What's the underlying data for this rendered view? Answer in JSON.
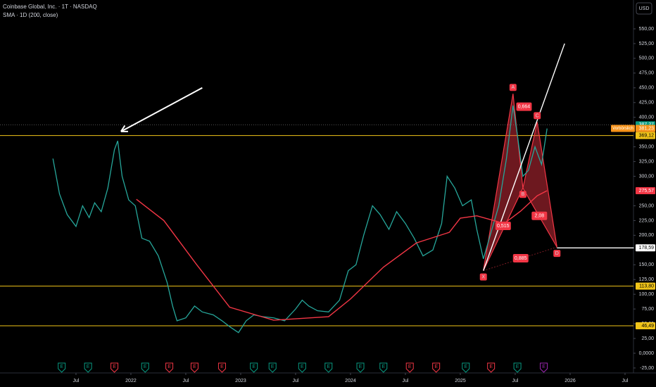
{
  "chart_data": {
    "type": "line",
    "title": "Coinbase Global, Inc. · 1T · NASDAQ",
    "subtitle": "SMA · 1D (200, close)",
    "currency": "USD",
    "background": "#000000",
    "grid": false,
    "xlim": [
      2020.808,
      2026.577
    ],
    "xticks": [
      {
        "value": 2021.5,
        "label": "Jul"
      },
      2022,
      {
        "value": 2022.5,
        "label": "Jul"
      },
      2023,
      {
        "value": 2023.5,
        "label": "Jul"
      },
      2024,
      {
        "value": 2024.5,
        "label": "Jul"
      },
      2025,
      {
        "value": 2025.5,
        "label": "Jul"
      },
      2026,
      {
        "value": 2026.5,
        "label": "Jul"
      }
    ],
    "ylim": [
      -33.4,
      598.9
    ],
    "yticks": [
      {
        "value": 550,
        "label": "550,00"
      },
      {
        "value": 525,
        "label": "525,00"
      },
      {
        "value": 500,
        "label": "500,00"
      },
      {
        "value": 475,
        "label": "475,00"
      },
      {
        "value": 450,
        "label": "450,00"
      },
      {
        "value": 425,
        "label": "425,00"
      },
      {
        "value": 400,
        "label": "400,00"
      },
      {
        "value": 350,
        "label": "350,00"
      },
      {
        "value": 325,
        "label": "325,00"
      },
      {
        "value": 300,
        "label": "300,00"
      },
      {
        "value": 250,
        "label": "250,00"
      },
      {
        "value": 225,
        "label": "225,00"
      },
      {
        "value": 200,
        "label": "200,00"
      },
      {
        "value": 150,
        "label": "150,00"
      },
      {
        "value": 125,
        "label": "125,00"
      },
      {
        "value": 100,
        "label": "100,00"
      },
      {
        "value": 75,
        "label": "75,00"
      },
      {
        "value": 50,
        "label": "50,00"
      },
      {
        "value": 25,
        "label": "25,00"
      },
      {
        "value": 0,
        "label": "0,0000"
      },
      {
        "value": -25,
        "label": "-25,00"
      }
    ],
    "series": [
      {
        "color": "#26a69a",
        "x": [
          2021.29,
          2021.35,
          2021.42,
          2021.5,
          2021.56,
          2021.62,
          2021.67,
          2021.73,
          2021.79,
          2021.85,
          2021.88,
          2021.92,
          2021.98,
          2022.04,
          2022.1,
          2022.17,
          2022.25,
          2022.33,
          2022.38,
          2022.42,
          2022.5,
          2022.58,
          2022.65,
          2022.75,
          2022.83,
          2022.9,
          2022.98,
          2023.05,
          2023.12,
          2023.2,
          2023.3,
          2023.4,
          2023.5,
          2023.56,
          2023.62,
          2023.7,
          2023.8,
          2023.9,
          2023.98,
          2024.05,
          2024.12,
          2024.2,
          2024.27,
          2024.35,
          2024.42,
          2024.5,
          2024.58,
          2024.66,
          2024.75,
          2024.83,
          2024.88,
          2024.95,
          2025.02,
          2025.1,
          2025.15,
          2025.21,
          2025.28,
          2025.35,
          2025.42,
          2025.48,
          2025.52,
          2025.57,
          2025.62,
          2025.68,
          2025.74,
          2025.79
        ],
        "values": [
          330,
          270,
          235,
          215,
          250,
          230,
          255,
          240,
          280,
          345,
          360,
          300,
          260,
          250,
          195,
          190,
          165,
          120,
          80,
          55,
          60,
          80,
          70,
          65,
          55,
          45,
          35,
          55,
          65,
          62,
          60,
          55,
          75,
          90,
          80,
          72,
          70,
          90,
          140,
          150,
          200,
          250,
          235,
          210,
          240,
          220,
          195,
          165,
          175,
          220,
          300,
          280,
          250,
          260,
          210,
          160,
          205,
          250,
          330,
          420,
          370,
          300,
          310,
          350,
          320,
          381
        ]
      },
      {
        "color": "#f23645",
        "x": [
          2022.05,
          2022.3,
          2022.6,
          2022.9,
          2023.3,
          2023.8,
          2024.0,
          2024.3,
          2024.6,
          2024.9,
          2025.0,
          2025.15,
          2025.4,
          2025.55,
          2025.7,
          2025.79
        ],
        "values": [
          261,
          225,
          150,
          78,
          56,
          62,
          92,
          146,
          187,
          205,
          229,
          233,
          220,
          241,
          267,
          275.57
        ]
      }
    ],
    "levels": [
      {
        "value": 387.27,
        "color": "#555555"
      },
      {
        "value": 369.12,
        "color": "#f0c419"
      },
      {
        "value": 113.8,
        "color": "#f0c419"
      },
      {
        "value": 46.49,
        "color": "#f0c419"
      }
    ],
    "price_labels": [
      {
        "value": 387.27,
        "label": "387,27",
        "color": "#089981"
      },
      {
        "value": 381.23,
        "label": "381,23",
        "color": "#f7931a",
        "tag": "Vorbörslich"
      },
      {
        "value": 369.12,
        "label": "369,12",
        "color": "#f0c419"
      },
      {
        "value": 275.57,
        "label": "275,57",
        "color": "#f23645"
      },
      {
        "value": 178.59,
        "label": "178,59",
        "color": "#ffffff"
      },
      {
        "value": 113.8,
        "label": "113,80",
        "color": "#f0c419"
      },
      {
        "value": 46.49,
        "label": "46,49",
        "color": "#f0c419"
      }
    ],
    "pattern": {
      "color": "#f23645",
      "points": [
        {
          "name": "X",
          "x": 2025.21,
          "y": 140
        },
        {
          "name": "A",
          "x": 2025.48,
          "y": 440
        },
        {
          "name": "B",
          "x": 2025.57,
          "y": 280
        },
        {
          "name": "C",
          "x": 2025.7,
          "y": 392
        },
        {
          "name": "D",
          "x": 2025.88,
          "y": 180
        }
      ],
      "ratios": [
        {
          "label": "0,515",
          "x": 2025.39,
          "y": 216
        },
        {
          "label": "0,664",
          "x": 2025.58,
          "y": 418
        },
        {
          "label": "2,08",
          "x": 2025.72,
          "y": 233
        },
        {
          "label": "0,885",
          "x": 2025.55,
          "y": 161
        }
      ]
    },
    "lines": [
      {
        "color": "#ffffff",
        "x": [
          2025.21,
          2025.95
        ],
        "values": [
          140,
          525
        ]
      },
      {
        "color": "#ffffff",
        "x": [
          2022.65,
          2021.91
        ],
        "values": [
          450,
          376
        ],
        "arrow": true
      },
      {
        "color": "#ffffff",
        "x": [
          2025.88,
          2026.58
        ],
        "values": [
          178.59,
          178.59
        ]
      }
    ],
    "events": [
      {
        "x": 2021.37,
        "label": "E",
        "color": "#089981"
      },
      {
        "x": 2021.61,
        "label": "E",
        "color": "#089981"
      },
      {
        "x": 2021.85,
        "label": "E",
        "color": "#f23645"
      },
      {
        "x": 2022.13,
        "label": "E",
        "color": "#089981"
      },
      {
        "x": 2022.35,
        "label": "E",
        "color": "#f23645"
      },
      {
        "x": 2022.58,
        "label": "E",
        "color": "#f23645"
      },
      {
        "x": 2022.83,
        "label": "E",
        "color": "#f23645"
      },
      {
        "x": 2023.12,
        "label": "E",
        "color": "#089981"
      },
      {
        "x": 2023.29,
        "label": "E",
        "color": "#089981"
      },
      {
        "x": 2023.56,
        "label": "E",
        "color": "#089981"
      },
      {
        "x": 2023.8,
        "label": "E",
        "color": "#089981"
      },
      {
        "x": 2024.09,
        "label": "E",
        "color": "#089981"
      },
      {
        "x": 2024.3,
        "label": "E",
        "color": "#089981"
      },
      {
        "x": 2024.54,
        "label": "E",
        "color": "#f23645"
      },
      {
        "x": 2024.78,
        "label": "E",
        "color": "#f23645"
      },
      {
        "x": 2025.05,
        "label": "E",
        "color": "#089981"
      },
      {
        "x": 2025.28,
        "label": "E",
        "color": "#f23645"
      },
      {
        "x": 2025.52,
        "label": "E",
        "color": "#089981"
      },
      {
        "x": 2025.76,
        "label": "E",
        "color": "#9c27b0"
      }
    ]
  }
}
